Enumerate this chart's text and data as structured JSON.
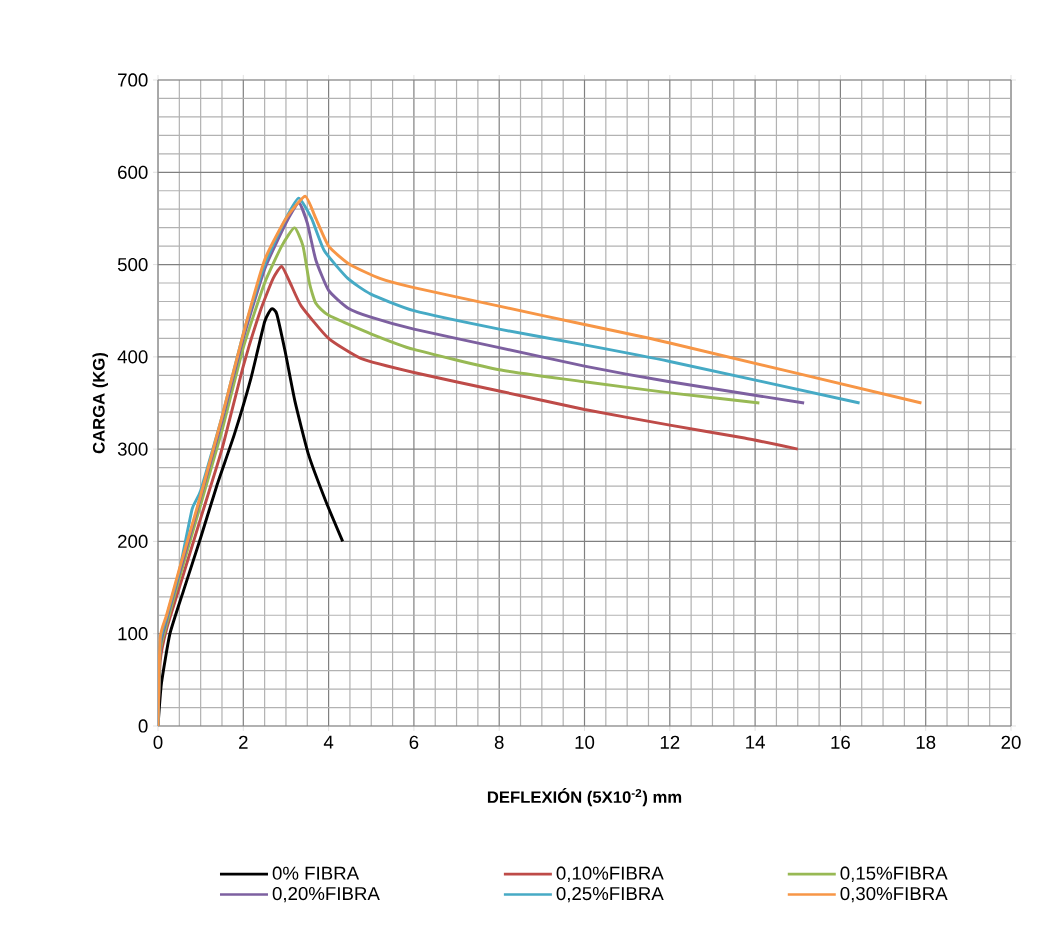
{
  "chart_data": {
    "type": "line",
    "xlabel": "DEFLEXIÓN (5X10$^{-2}$) mm",
    "ylabel": "CARGA (KG)",
    "xlim": [
      0,
      20
    ],
    "xticks": [
      0,
      2,
      4,
      6,
      8,
      10,
      12,
      14,
      16,
      18,
      20
    ],
    "ylim": [
      0,
      700
    ],
    "yticks": [
      0,
      100,
      200,
      300,
      400,
      500,
      600,
      700
    ],
    "grid": true,
    "legend": "bottom",
    "marker": "none",
    "line_style": "solid",
    "series": [
      {
        "name": "0% FIBRA",
        "color": "#000000",
        "x": [
          0,
          0.08,
          0.28,
          0.6,
          1.0,
          1.39,
          1.79,
          2.18,
          2.5,
          2.66,
          2.78,
          2.98,
          3.21,
          3.53,
          3.93,
          4.33
        ],
        "values": [
          0,
          46,
          100,
          147,
          204,
          262,
          316,
          377,
          438,
          452,
          447,
          406,
          352,
          294,
          244,
          200
        ]
      },
      {
        "name": "0,10%FIBRA",
        "color": "#be4b48",
        "x": [
          0,
          0.05,
          0.2,
          0.5,
          1,
          1.5,
          2,
          2.4,
          2.7,
          2.9,
          3.1,
          3.36,
          4.0,
          4.77,
          6,
          8,
          10,
          12,
          13.75,
          15
        ],
        "values": [
          0,
          70,
          105,
          150,
          225,
          300,
          390,
          450,
          485,
          498,
          480,
          455,
          420,
          398,
          383,
          363,
          343,
          326,
          312,
          300
        ]
      },
      {
        "name": "0,15%FIBRA",
        "color": "#98b954",
        "x": [
          0,
          0.05,
          0.2,
          0.5,
          1,
          1.5,
          2,
          2.5,
          2.9,
          3.2,
          3.4,
          3.55,
          3.7,
          4.0,
          4.99,
          6,
          8,
          10,
          12,
          14.1
        ],
        "values": [
          0,
          80,
          110,
          160,
          240,
          320,
          410,
          480,
          520,
          540,
          520,
          480,
          458,
          445,
          425,
          408,
          386,
          373,
          361,
          350
        ]
      },
      {
        "name": "0,20%FIBRA",
        "color": "#7d60a0",
        "x": [
          0,
          0.05,
          0.2,
          0.5,
          1,
          1.5,
          2,
          2.5,
          3,
          3.3,
          3.5,
          3.7,
          4,
          4.45,
          4.99,
          6,
          8,
          10,
          12,
          15.15
        ],
        "values": [
          0,
          85,
          115,
          165,
          248,
          330,
          420,
          495,
          545,
          567,
          545,
          505,
          472,
          453,
          443,
          430,
          410,
          390,
          373,
          350
        ]
      },
      {
        "name": "0,25%FIBRA",
        "color": "#46aac5",
        "x": [
          0,
          0.05,
          0.2,
          0.5,
          0.8,
          1,
          1.5,
          2,
          2.5,
          3,
          3.3,
          3.6,
          3.9,
          4.45,
          4.99,
          6,
          8,
          10,
          12,
          16.45
        ],
        "values": [
          0,
          90,
          118,
          168,
          235,
          255,
          335,
          425,
          500,
          550,
          572,
          550,
          515,
          485,
          468,
          450,
          430,
          413,
          395,
          350
        ]
      },
      {
        "name": "0,30%FIBRA",
        "color": "#f79646",
        "x": [
          0,
          0.05,
          0.2,
          0.5,
          1,
          1.5,
          2,
          2.5,
          3,
          3.45,
          3.7,
          4,
          4.5,
          5.2,
          6,
          8,
          10,
          12,
          17.9
        ],
        "values": [
          0,
          95,
          120,
          170,
          250,
          335,
          425,
          505,
          550,
          574,
          550,
          520,
          500,
          485,
          475,
          455,
          435,
          415,
          350
        ]
      }
    ]
  }
}
